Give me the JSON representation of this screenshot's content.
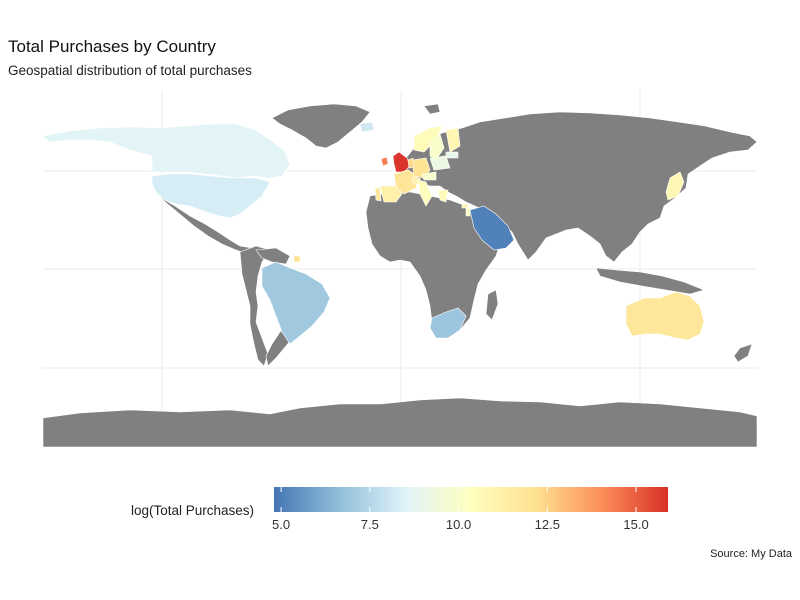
{
  "title": "Total Purchases by Country",
  "subtitle": "Geospatial distribution of total purchases",
  "caption": "Source: My Data",
  "legend": {
    "title": "log(Total Purchases)",
    "min": 4.8,
    "max": 15.9,
    "ticks": [
      {
        "value": 5.0,
        "label": "5.0"
      },
      {
        "value": 7.5,
        "label": "7.5"
      },
      {
        "value": 10.0,
        "label": "10.0"
      },
      {
        "value": 12.5,
        "label": "12.5"
      },
      {
        "value": 15.0,
        "label": "15.0"
      }
    ],
    "colors": [
      "#4575b4",
      "#91bfdb",
      "#e0f3f8",
      "#ffffbf",
      "#fee090",
      "#fc8d59",
      "#d73027"
    ]
  },
  "colors": {
    "no_data": "#808080",
    "border": "#ffffff",
    "grid": "#ebebeb"
  },
  "chart_data": {
    "type": "choropleth",
    "variable": "log(Total Purchases)",
    "regions": [
      {
        "name": "United Kingdom",
        "value": 15.8
      },
      {
        "name": "Ireland",
        "value": 14.3
      },
      {
        "name": "Saudi Arabia",
        "value": 5.1
      },
      {
        "name": "Canada",
        "value": 8.6
      },
      {
        "name": "United States",
        "value": 8.3
      },
      {
        "name": "Brazil",
        "value": 7.0
      },
      {
        "name": "South Africa",
        "value": 6.9
      },
      {
        "name": "Australia",
        "value": 11.8
      },
      {
        "name": "Greenland",
        "value": null
      },
      {
        "name": "France",
        "value": 11.9
      },
      {
        "name": "Spain",
        "value": 11.2
      },
      {
        "name": "Portugal",
        "value": 11.6
      },
      {
        "name": "Germany",
        "value": 12.0
      },
      {
        "name": "Netherlands",
        "value": 12.4
      },
      {
        "name": "Switzerland",
        "value": 11.2
      },
      {
        "name": "Italy",
        "value": 10.4
      },
      {
        "name": "Poland",
        "value": 9.2
      },
      {
        "name": "Austria",
        "value": 9.9
      },
      {
        "name": "Norway",
        "value": 10.6
      },
      {
        "name": "Sweden",
        "value": 10.0
      },
      {
        "name": "Finland",
        "value": 10.9
      },
      {
        "name": "Iceland",
        "value": 8.1
      },
      {
        "name": "Lithuania",
        "value": 9.0
      },
      {
        "name": "Greece",
        "value": 10.6
      },
      {
        "name": "Cyprus",
        "value": 11.0
      },
      {
        "name": "Israel",
        "value": 10.2
      },
      {
        "name": "Japan",
        "value": 10.8
      },
      {
        "name": "French Guiana",
        "value": 12.0
      }
    ]
  }
}
